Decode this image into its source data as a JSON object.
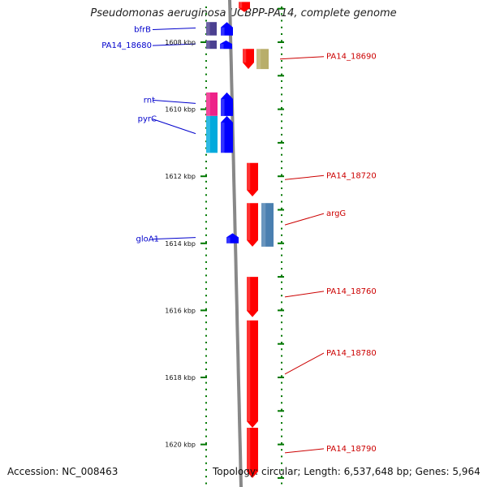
{
  "title": "Pseudomonas aeruginosa UCBPP-PA14, complete genome",
  "footer": {
    "accession_label": "Accession:",
    "accession": "NC_008463",
    "topology_label": "Topology:",
    "topology": "circular",
    "length_label": "Length:",
    "length": "6,537,648 bp",
    "genes_label": "Genes:",
    "genes": "5,964"
  },
  "scale": {
    "ticks": [
      {
        "kbp": 1608,
        "label": "1608 kbp"
      },
      {
        "kbp": 1610,
        "label": "1610 kbp"
      },
      {
        "kbp": 1612,
        "label": "1612 kbp"
      },
      {
        "kbp": 1614,
        "label": "1614 kbp"
      },
      {
        "kbp": 1616,
        "label": "1616 kbp"
      },
      {
        "kbp": 1618,
        "label": "1618 kbp"
      },
      {
        "kbp": 1620,
        "label": "1620 kbp"
      }
    ]
  },
  "colors": {
    "forward_cds": "#0000ff",
    "reverse_cds": "#ff0000",
    "forward_label": "#0000cc",
    "reverse_label": "#cc0000",
    "backbone": "#888888",
    "ticks": "#007700"
  },
  "genes_left": [
    {
      "name": "bfrB",
      "start": 1607.4,
      "end": 1607.8
    },
    {
      "name": "PA14_18680",
      "start": 1607.95,
      "end": 1608.2
    },
    {
      "name": "rnt",
      "start": 1609.5,
      "end": 1610.2
    },
    {
      "name": "pyrC",
      "start": 1610.2,
      "end": 1611.3
    },
    {
      "name": "gloA1",
      "start": 1613.7,
      "end": 1614.0
    }
  ],
  "genes_right": [
    {
      "name": "PA14_18690",
      "start": 1608.2,
      "end": 1608.8
    },
    {
      "name": "PA14_18720",
      "start": 1611.6,
      "end": 1612.6
    },
    {
      "name": "argG",
      "start": 1612.8,
      "end": 1614.1
    },
    {
      "name": "PA14_18760",
      "start": 1615.0,
      "end": 1616.2
    },
    {
      "name": "PA14_18780",
      "start": 1616.3,
      "end": 1619.5
    },
    {
      "name": "PA14_18790",
      "start": 1619.5,
      "end": 1621.0
    }
  ],
  "features_left": [
    {
      "type": "gene",
      "color": "#4b4090",
      "start": 1607.4,
      "end": 1607.8
    },
    {
      "type": "cds",
      "color": "#0000ff",
      "start": 1607.4,
      "end": 1607.8
    },
    {
      "type": "gene",
      "color": "#4b4090",
      "start": 1607.95,
      "end": 1608.2
    },
    {
      "type": "cds",
      "color": "#0000ff",
      "start": 1607.95,
      "end": 1608.2
    },
    {
      "type": "gene",
      "color": "#ee2288",
      "start": 1609.5,
      "end": 1610.2
    },
    {
      "type": "cds",
      "color": "#0000ff",
      "start": 1609.5,
      "end": 1610.2
    },
    {
      "type": "gene",
      "color": "#00aadd",
      "start": 1610.2,
      "end": 1611.3
    },
    {
      "type": "cds",
      "color": "#0000ff",
      "start": 1610.2,
      "end": 1611.3
    },
    {
      "type": "cds",
      "color": "#0000ff",
      "start": 1613.7,
      "end": 1614.0
    }
  ],
  "features_right": [
    {
      "type": "cds",
      "color": "#ff0000",
      "start": 1606.8,
      "end": 1607.1
    },
    {
      "type": "cds",
      "color": "#ff0000",
      "start": 1608.2,
      "end": 1608.8
    },
    {
      "type": "gene",
      "color": "#b8ae6a",
      "start": 1608.2,
      "end": 1608.8
    },
    {
      "type": "cds",
      "color": "#ff0000",
      "start": 1611.6,
      "end": 1612.6
    },
    {
      "type": "cds",
      "color": "#ff0000",
      "start": 1612.8,
      "end": 1614.1
    },
    {
      "type": "gene",
      "color": "#4a7fb0",
      "start": 1612.8,
      "end": 1614.1
    },
    {
      "type": "cds",
      "color": "#ff0000",
      "start": 1615.0,
      "end": 1616.2
    },
    {
      "type": "cds",
      "color": "#ff0000",
      "start": 1616.3,
      "end": 1619.5
    },
    {
      "type": "cds",
      "color": "#ff0000",
      "start": 1619.5,
      "end": 1621.0
    }
  ]
}
